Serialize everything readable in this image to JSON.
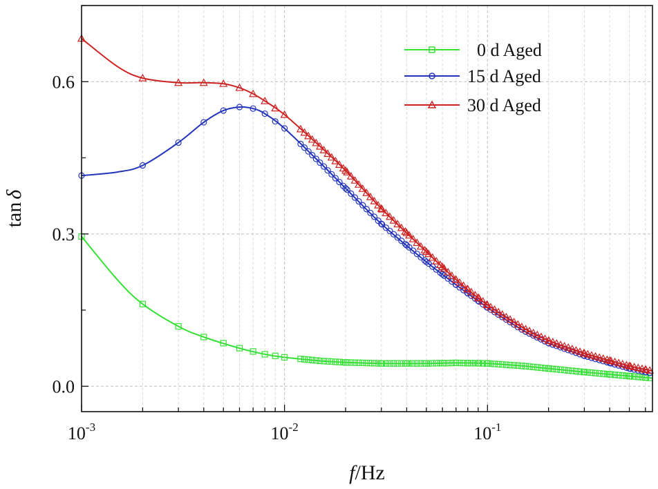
{
  "chart_data": {
    "type": "line",
    "x_scale": "log",
    "xlim": [
      0.001,
      0.65
    ],
    "ylim": [
      -0.05,
      0.75
    ],
    "grid": true,
    "legend_position": "top-right",
    "xlabel": {
      "italic": "f",
      "rest": "/Hz"
    },
    "ylabel": {
      "prefix": "tan",
      "italic": "δ"
    },
    "x_ticks": [
      {
        "value": 0.001,
        "base": "10",
        "exp": "-3"
      },
      {
        "value": 0.01,
        "base": "10",
        "exp": "-2"
      },
      {
        "value": 0.1,
        "base": "10",
        "exp": "-1"
      }
    ],
    "y_ticks": [
      {
        "value": 0.0,
        "label": "0.0"
      },
      {
        "value": 0.3,
        "label": "0.3"
      },
      {
        "value": 0.6,
        "label": "0.6"
      }
    ],
    "series": [
      {
        "name": "0 d Aged",
        "color": "#35e035",
        "marker": "square",
        "x": [
          0.001,
          0.0015,
          0.002,
          0.003,
          0.004,
          0.006,
          0.008,
          0.01,
          0.015,
          0.02,
          0.03,
          0.05,
          0.07,
          0.1,
          0.15,
          0.2,
          0.3,
          0.5,
          0.65
        ],
        "y": [
          0.295,
          0.21,
          0.162,
          0.118,
          0.097,
          0.075,
          0.063,
          0.057,
          0.05,
          0.047,
          0.045,
          0.045,
          0.046,
          0.045,
          0.04,
          0.035,
          0.028,
          0.02,
          0.016
        ]
      },
      {
        "name": "15 d Aged",
        "color": "#2233bb",
        "marker": "circle",
        "x": [
          0.001,
          0.0015,
          0.002,
          0.003,
          0.004,
          0.005,
          0.006,
          0.007,
          0.008,
          0.01,
          0.015,
          0.02,
          0.03,
          0.05,
          0.07,
          0.1,
          0.15,
          0.2,
          0.3,
          0.5,
          0.65
        ],
        "y": [
          0.415,
          0.422,
          0.435,
          0.48,
          0.52,
          0.543,
          0.55,
          0.547,
          0.537,
          0.508,
          0.44,
          0.39,
          0.32,
          0.245,
          0.2,
          0.155,
          0.11,
          0.085,
          0.06,
          0.035,
          0.025
        ]
      },
      {
        "name": "30 d Aged",
        "color": "#cc2222",
        "marker": "triangle",
        "x": [
          0.001,
          0.0015,
          0.002,
          0.003,
          0.004,
          0.005,
          0.006,
          0.007,
          0.008,
          0.01,
          0.015,
          0.02,
          0.03,
          0.05,
          0.07,
          0.1,
          0.15,
          0.2,
          0.3,
          0.5,
          0.65
        ],
        "y": [
          0.685,
          0.63,
          0.607,
          0.598,
          0.598,
          0.596,
          0.588,
          0.576,
          0.562,
          0.535,
          0.472,
          0.425,
          0.35,
          0.265,
          0.21,
          0.16,
          0.115,
          0.09,
          0.065,
          0.04,
          0.03
        ]
      }
    ]
  }
}
